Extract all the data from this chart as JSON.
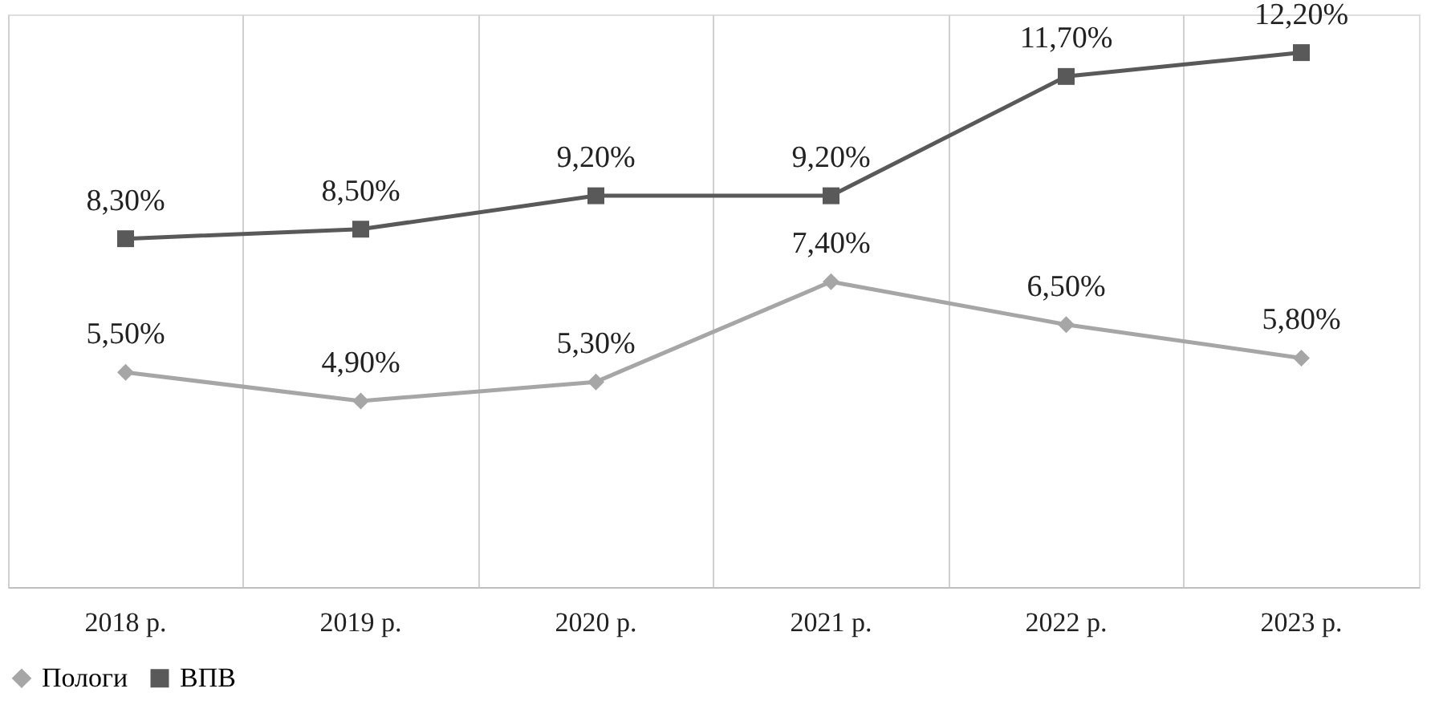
{
  "chart_data": {
    "type": "line",
    "categories": [
      "2018 р.",
      "2019 р.",
      "2020 р.",
      "2021 р.",
      "2022 р.",
      "2023 р."
    ],
    "series": [
      {
        "name": "Пологи",
        "color": "#a6a6a6",
        "marker": "diamond",
        "values": [
          5.5,
          4.9,
          5.3,
          7.4,
          6.5,
          5.8
        ],
        "value_labels": [
          "5,50%",
          "4,90%",
          "5,30%",
          "7,40%",
          "6,50%",
          "5,80%"
        ]
      },
      {
        "name": "ВПВ",
        "color": "#595959",
        "marker": "square",
        "values": [
          8.3,
          8.5,
          9.2,
          9.2,
          11.7,
          12.2
        ],
        "value_labels": [
          "8,30%",
          "8,50%",
          "9,20%",
          "9,20%",
          "11,70%",
          "12,20%"
        ]
      }
    ],
    "ylim": [
      1,
      13
    ],
    "tick_labels": "x",
    "grid": "x",
    "legend": "bottom"
  }
}
